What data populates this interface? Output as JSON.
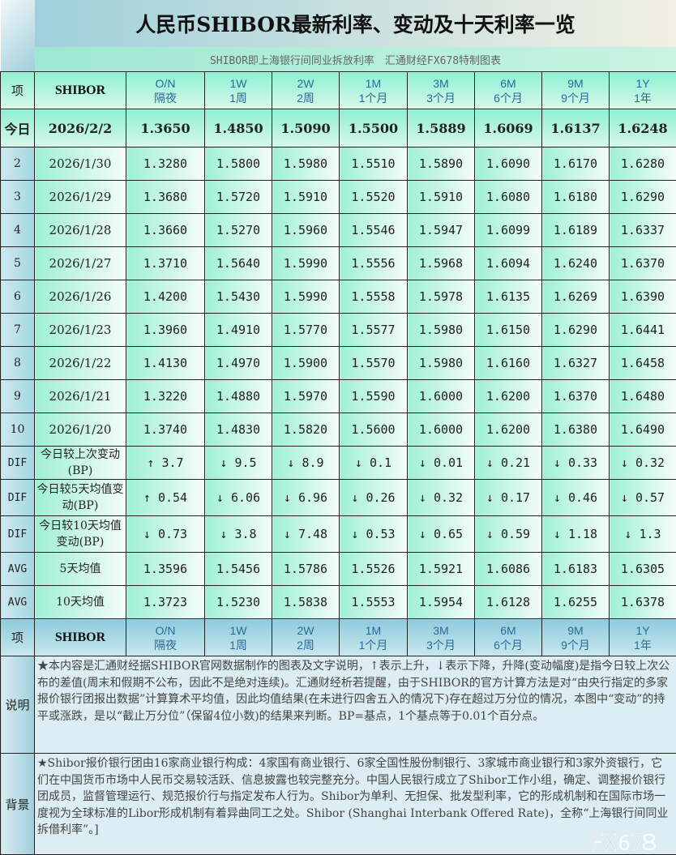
{
  "title": "人民币SHIBOR最新利率、变动及十天利率一览",
  "subtitle": "SHIBOR即上海银行间同业拆放利率　汇通财经FX678特制图表",
  "header": {
    "item": "项",
    "name": "SHIBOR",
    "terms": [
      [
        "O/N",
        "隔夜"
      ],
      [
        "1W",
        "1周"
      ],
      [
        "2W",
        "2周"
      ],
      [
        "1M",
        "1个月"
      ],
      [
        "3M",
        "3个月"
      ],
      [
        "6M",
        "6个月"
      ],
      [
        "9M",
        "9个月"
      ],
      [
        "1Y",
        "1年"
      ]
    ]
  },
  "today": {
    "label": "今日",
    "date": "2026/2/2",
    "values": [
      "1.3650",
      "1.4850",
      "1.5090",
      "1.5500",
      "1.5889",
      "1.6069",
      "1.6137",
      "1.6248"
    ]
  },
  "history": [
    {
      "idx": "2",
      "date": "2026/1/30",
      "values": [
        "1.3280",
        "1.5800",
        "1.5980",
        "1.5510",
        "1.5890",
        "1.6090",
        "1.6170",
        "1.6280"
      ]
    },
    {
      "idx": "3",
      "date": "2026/1/29",
      "values": [
        "1.3680",
        "1.5720",
        "1.5910",
        "1.5520",
        "1.5910",
        "1.6080",
        "1.6180",
        "1.6290"
      ]
    },
    {
      "idx": "4",
      "date": "2026/1/28",
      "values": [
        "1.3660",
        "1.5270",
        "1.5960",
        "1.5546",
        "1.5947",
        "1.6099",
        "1.6189",
        "1.6337"
      ]
    },
    {
      "idx": "5",
      "date": "2026/1/27",
      "values": [
        "1.3710",
        "1.5640",
        "1.5990",
        "1.5556",
        "1.5968",
        "1.6094",
        "1.6240",
        "1.6370"
      ]
    },
    {
      "idx": "6",
      "date": "2026/1/26",
      "values": [
        "1.4200",
        "1.5430",
        "1.5990",
        "1.5558",
        "1.5978",
        "1.6135",
        "1.6269",
        "1.6390"
      ]
    },
    {
      "idx": "7",
      "date": "2026/1/23",
      "values": [
        "1.3960",
        "1.4910",
        "1.5770",
        "1.5577",
        "1.5980",
        "1.6150",
        "1.6290",
        "1.6441"
      ]
    },
    {
      "idx": "8",
      "date": "2026/1/22",
      "values": [
        "1.4130",
        "1.4970",
        "1.5900",
        "1.5570",
        "1.5980",
        "1.6160",
        "1.6327",
        "1.6458"
      ]
    },
    {
      "idx": "9",
      "date": "2026/1/21",
      "values": [
        "1.3220",
        "1.4880",
        "1.5970",
        "1.5590",
        "1.6000",
        "1.6200",
        "1.6370",
        "1.6480"
      ]
    },
    {
      "idx": "10",
      "date": "2026/1/20",
      "values": [
        "1.3740",
        "1.4830",
        "1.5820",
        "1.5600",
        "1.6000",
        "1.6200",
        "1.6380",
        "1.6490"
      ]
    }
  ],
  "dif": [
    {
      "idx": "DIF",
      "label": "今日较上次变动(BP)",
      "values": [
        [
          "up",
          "3.7"
        ],
        [
          "down",
          "9.5"
        ],
        [
          "down",
          "8.9"
        ],
        [
          "down",
          "0.1"
        ],
        [
          "down",
          "0.01"
        ],
        [
          "down",
          "0.21"
        ],
        [
          "down",
          "0.33"
        ],
        [
          "down",
          "0.32"
        ]
      ]
    },
    {
      "idx": "DIF",
      "label": "今日较5天均值变动(BP)",
      "values": [
        [
          "up",
          "0.54"
        ],
        [
          "down",
          "6.06"
        ],
        [
          "down",
          "6.96"
        ],
        [
          "down",
          "0.26"
        ],
        [
          "down",
          "0.32"
        ],
        [
          "down",
          "0.17"
        ],
        [
          "down",
          "0.46"
        ],
        [
          "down",
          "0.57"
        ]
      ]
    },
    {
      "idx": "DIF",
      "label": "今日较10天均值变动(BP)",
      "values": [
        [
          "down",
          "0.73"
        ],
        [
          "down",
          "3.8"
        ],
        [
          "down",
          "7.48"
        ],
        [
          "down",
          "0.53"
        ],
        [
          "down",
          "0.65"
        ],
        [
          "down",
          "0.59"
        ],
        [
          "down",
          "1.18"
        ],
        [
          "down",
          "1.3"
        ]
      ]
    }
  ],
  "avg": [
    {
      "idx": "AVG",
      "label": "5天均值",
      "values": [
        "1.3596",
        "1.5456",
        "1.5786",
        "1.5526",
        "1.5921",
        "1.6086",
        "1.6183",
        "1.6305"
      ]
    },
    {
      "idx": "AVG",
      "label": "10天均值",
      "values": [
        "1.3723",
        "1.5230",
        "1.5838",
        "1.5553",
        "1.5954",
        "1.6128",
        "1.6255",
        "1.6378"
      ]
    }
  ],
  "arrows": {
    "up": "↑",
    "down": "↓"
  },
  "colors": {
    "up": "#ff0000",
    "down": "#1a1aff"
  },
  "notes": [
    {
      "label": "说明",
      "text": "★本内容是汇通财经据SHIBOR官网数据制作的图表及文字说明，↑表示上升，↓表示下降，升降(变动幅度)是指今日较上次公布的差值(周末和假期不公布，因此不是绝对连续)。汇通财经析若提醒，由于SHIBOR的官方计算方法是对“由央行指定的多家报价银行团报出数据”计算算术平均值，因此均值结果(在未进行四舍五入的情况下)存在超过万分位的情况，本图中“变动”的持平或涨跌，是以“截止万分位”（保留4位小数)的结果来判断。BP=基点，1个基点等于0.01个百分点。"
    },
    {
      "label": "背景",
      "text": "★Shibor报价银行团由16家商业银行构成：4家国有商业银行、6家全国性股份制银行、3家城市商业银行和3家外资银行，它们在中国货币市场中人民币交易较活跃、信息披露也较完整充分。中国人民银行成立了Shibor工作小组，确定、调整报价银行团成员，监督管理运行、规范报价行与指定发布人行为。Shibor为单利、无担保、批发型利率，它的形成机制和在国际市场一度视为全球标准的Libor形成机制有着异曲同工之处。Shibor (Shanghai Interbank Offered Rate)，全称“上海银行间同业拆借利率”。]"
    }
  ],
  "watermark": "FX678"
}
